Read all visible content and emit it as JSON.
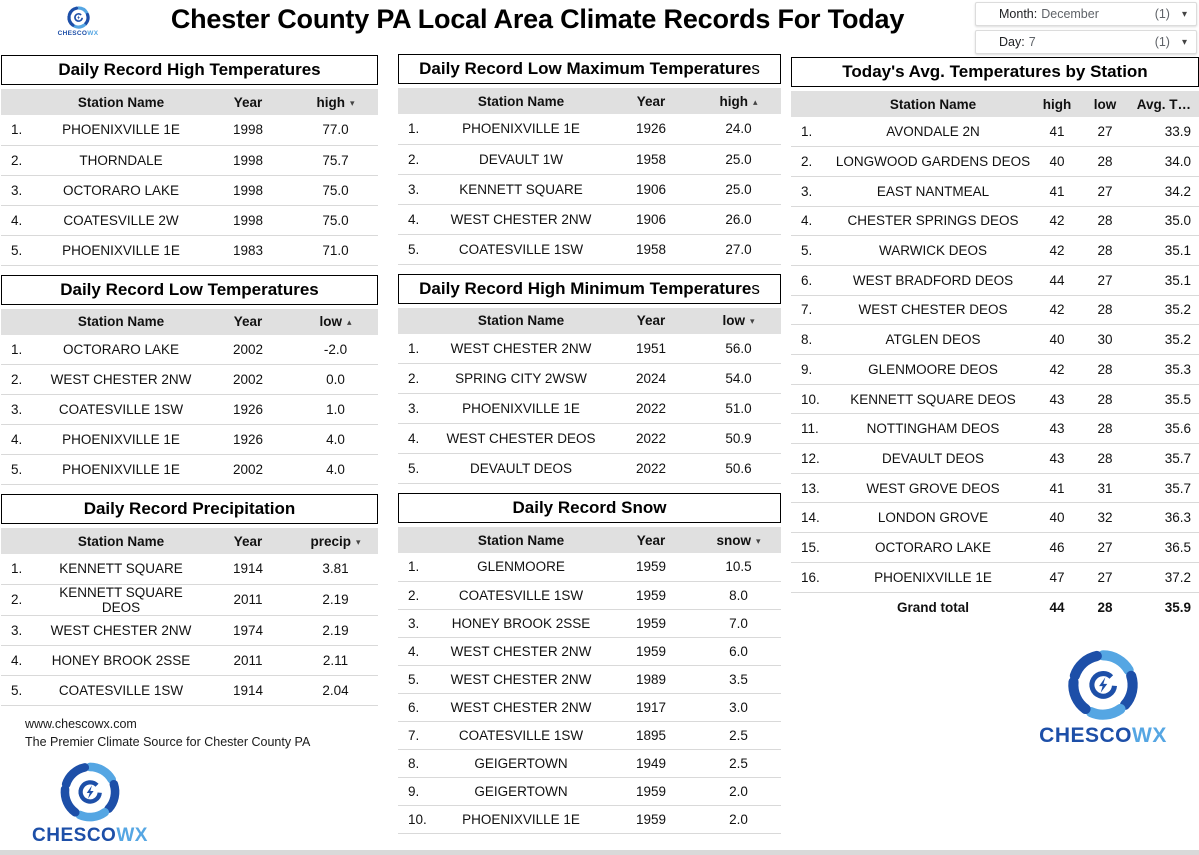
{
  "page": {
    "title": "Chester County PA Local Area Climate Records For Today"
  },
  "filters": [
    {
      "label": "Month:",
      "value": "December",
      "count": "(1)"
    },
    {
      "label": "Day:",
      "value": "7",
      "count": "(1)"
    }
  ],
  "icons": {
    "chevron_down": "▾",
    "sort_desc": "▾",
    "sort_asc": "▴"
  },
  "branding": {
    "website": "www.chescowx.com",
    "tagline": "The Premier Climate Source for Chester County PA",
    "logo_primary": "CHESCO",
    "logo_secondary": "WX",
    "color_dark": "#1d4fa8",
    "color_light": "#55a6e3",
    "header_row_bg": "#e0e0e0"
  },
  "tables": [
    {
      "title": "Daily Record High Temperatures",
      "title_suffix": "",
      "columns": [
        "Station Name",
        "Year",
        "high"
      ],
      "sort": {
        "col": 2,
        "dir": "desc"
      },
      "rows": [
        [
          "PHOENIXVILLE 1E",
          "1998",
          "77.0"
        ],
        [
          "THORNDALE",
          "1998",
          "75.7"
        ],
        [
          "OCTORARO LAKE",
          "1998",
          "75.0"
        ],
        [
          "COATESVILLE 2W",
          "1998",
          "75.0"
        ],
        [
          "PHOENIXVILLE 1E",
          "1983",
          "71.0"
        ]
      ]
    },
    {
      "title": "Daily Record Low Temperatures",
      "title_suffix": "",
      "columns": [
        "Station Name",
        "Year",
        "low"
      ],
      "sort": {
        "col": 2,
        "dir": "asc"
      },
      "rows": [
        [
          "OCTORARO LAKE",
          "2002",
          "-2.0"
        ],
        [
          "WEST CHESTER 2NW",
          "2002",
          "0.0"
        ],
        [
          "COATESVILLE 1SW",
          "1926",
          "1.0"
        ],
        [
          "PHOENIXVILLE 1E",
          "1926",
          "4.0"
        ],
        [
          "PHOENIXVILLE 1E",
          "2002",
          "4.0"
        ]
      ]
    },
    {
      "title": "Daily Record Precipitation",
      "title_suffix": "",
      "columns": [
        "Station Name",
        "Year",
        "precip"
      ],
      "sort": {
        "col": 2,
        "dir": "desc"
      },
      "rows": [
        [
          "KENNETT SQUARE",
          "1914",
          "3.81"
        ],
        [
          "KENNETT SQUARE DEOS",
          "2011",
          "2.19"
        ],
        [
          "WEST CHESTER 2NW",
          "1974",
          "2.19"
        ],
        [
          "HONEY BROOK 2SSE",
          "2011",
          "2.11"
        ],
        [
          "COATESVILLE 1SW",
          "1914",
          "2.04"
        ]
      ]
    },
    {
      "title": "Daily Record Low Maximum Temperature",
      "title_suffix": "s",
      "columns": [
        "Station Name",
        "Year",
        "high"
      ],
      "sort": {
        "col": 2,
        "dir": "asc"
      },
      "rows": [
        [
          "PHOENIXVILLE 1E",
          "1926",
          "24.0"
        ],
        [
          "DEVAULT 1W",
          "1958",
          "25.0"
        ],
        [
          "KENNETT SQUARE",
          "1906",
          "25.0"
        ],
        [
          "WEST CHESTER 2NW",
          "1906",
          "26.0"
        ],
        [
          "COATESVILLE 1SW",
          "1958",
          "27.0"
        ]
      ]
    },
    {
      "title": "Daily Record High Minimum Temperature",
      "title_suffix": "s",
      "columns": [
        "Station Name",
        "Year",
        "low"
      ],
      "sort": {
        "col": 2,
        "dir": "desc"
      },
      "rows": [
        [
          "WEST CHESTER 2NW",
          "1951",
          "56.0"
        ],
        [
          "SPRING CITY 2WSW",
          "2024",
          "54.0"
        ],
        [
          "PHOENIXVILLE 1E",
          "2022",
          "51.0"
        ],
        [
          "WEST CHESTER DEOS",
          "2022",
          "50.9"
        ],
        [
          "DEVAULT DEOS",
          "2022",
          "50.6"
        ]
      ]
    },
    {
      "title": "Daily Record Snow",
      "title_suffix": "",
      "columns": [
        "Station Name",
        "Year",
        "snow"
      ],
      "sort": {
        "col": 2,
        "dir": "desc"
      },
      "rows": [
        [
          "GLENMOORE",
          "1959",
          "10.5"
        ],
        [
          "COATESVILLE 1SW",
          "1959",
          "8.0"
        ],
        [
          "HONEY BROOK 2SSE",
          "1959",
          "7.0"
        ],
        [
          "WEST CHESTER 2NW",
          "1959",
          "6.0"
        ],
        [
          "WEST CHESTER 2NW",
          "1989",
          "3.5"
        ],
        [
          "WEST CHESTER 2NW",
          "1917",
          "3.0"
        ],
        [
          "COATESVILLE 1SW",
          "1895",
          "2.5"
        ],
        [
          "GEIGERTOWN",
          "1949",
          "2.5"
        ],
        [
          "GEIGERTOWN",
          "1959",
          "2.0"
        ],
        [
          "PHOENIXVILLE 1E",
          "1959",
          "2.0"
        ]
      ]
    },
    {
      "title": "Today's Avg. Temperatures by Station",
      "title_suffix": "",
      "columns": [
        "Station Name",
        "high",
        "low",
        "Avg. T…"
      ],
      "rows": [
        [
          "AVONDALE 2N",
          "41",
          "27",
          "33.9"
        ],
        [
          "LONGWOOD GARDENS DEOS",
          "40",
          "28",
          "34.0"
        ],
        [
          "EAST NANTMEAL",
          "41",
          "27",
          "34.2"
        ],
        [
          "CHESTER SPRINGS DEOS",
          "42",
          "28",
          "35.0"
        ],
        [
          "WARWICK DEOS",
          "42",
          "28",
          "35.1"
        ],
        [
          "WEST BRADFORD DEOS",
          "44",
          "27",
          "35.1"
        ],
        [
          "WEST CHESTER DEOS",
          "42",
          "28",
          "35.2"
        ],
        [
          "ATGLEN DEOS",
          "40",
          "30",
          "35.2"
        ],
        [
          "GLENMOORE DEOS",
          "42",
          "28",
          "35.3"
        ],
        [
          "KENNETT SQUARE DEOS",
          "43",
          "28",
          "35.5"
        ],
        [
          "NOTTINGHAM DEOS",
          "43",
          "28",
          "35.6"
        ],
        [
          "DEVAULT DEOS",
          "43",
          "28",
          "35.7"
        ],
        [
          "WEST GROVE DEOS",
          "41",
          "31",
          "35.7"
        ],
        [
          "LONDON GROVE",
          "40",
          "32",
          "36.3"
        ],
        [
          "OCTORARO LAKE",
          "46",
          "27",
          "36.5"
        ],
        [
          "PHOENIXVILLE 1E",
          "47",
          "27",
          "37.2"
        ]
      ],
      "footer": [
        "Grand total",
        "44",
        "28",
        "35.9"
      ]
    }
  ]
}
